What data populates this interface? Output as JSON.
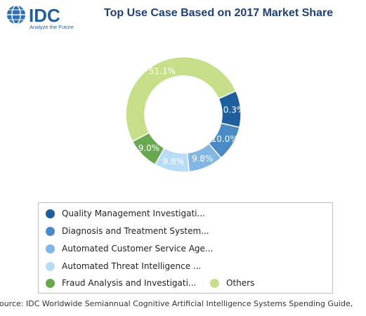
{
  "logo": {
    "brand": "IDC",
    "tagline": "Analyze the Future"
  },
  "chart_data": {
    "type": "pie",
    "style": "donut",
    "title": "Top Use Case Based on 2017 Market Share",
    "slices": [
      {
        "label": "Quality Management Investigati...",
        "value": 10.3,
        "display": "10.3%",
        "color": "#1f5f9e"
      },
      {
        "label": "Diagnosis and Treatment System...",
        "value": 10.0,
        "display": "10.0%",
        "color": "#4a8bc5"
      },
      {
        "label": "Automated Customer Service Age...",
        "value": 9.8,
        "display": "9.8%",
        "color": "#82b7e3"
      },
      {
        "label": "Automated Threat Intelligence ...",
        "value": 9.8,
        "display": "9.8%",
        "color": "#b8dcf6"
      },
      {
        "label": "Fraud Analysis and Investigati...",
        "value": 9.0,
        "display": "9.0%",
        "color": "#6aa84f"
      },
      {
        "label": "Others",
        "value": 51.1,
        "display": "51.1%",
        "color": "#c8df8a"
      }
    ],
    "legend_position": "bottom"
  },
  "source": "Source: IDC Worldwide Semiannual Cognitive Artificial Intelligence Systems Spending Guide,"
}
